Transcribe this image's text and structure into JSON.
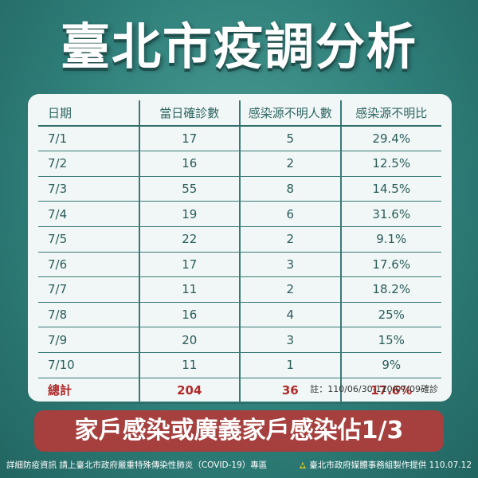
{
  "title": "臺北市疫調分析",
  "table": {
    "headers": [
      "日期",
      "當日確診數",
      "感染源不明人數",
      "感染源不明比"
    ],
    "rows": [
      [
        "7/1",
        "17",
        "5",
        "29.4%"
      ],
      [
        "7/2",
        "16",
        "2",
        "12.5%"
      ],
      [
        "7/3",
        "55",
        "8",
        "14.5%"
      ],
      [
        "7/4",
        "19",
        "6",
        "31.6%"
      ],
      [
        "7/5",
        "22",
        "2",
        "9.1%"
      ],
      [
        "7/6",
        "17",
        "3",
        "17.6%"
      ],
      [
        "7/7",
        "11",
        "2",
        "18.2%"
      ],
      [
        "7/8",
        "16",
        "4",
        "25%"
      ],
      [
        "7/9",
        "20",
        "3",
        "15%"
      ],
      [
        "7/10",
        "11",
        "1",
        "9%"
      ]
    ],
    "total": [
      "總計",
      "204",
      "36",
      "17.6%"
    ]
  },
  "note": "註：110/06/30-110/07/09確診",
  "banner": "家戶感染或廣義家戶感染佔1/3",
  "footer": {
    "left": "詳細防疫資訊 請上臺北市政府嚴重特殊傳染性肺炎（COVID-19）專區",
    "right": "臺北市政府媒體事務組製作提供 110.07.12"
  },
  "colors": {
    "accent_teal": "#2f7f7a",
    "banner_red": "#a6403e",
    "total_red": "#b02a2a"
  }
}
